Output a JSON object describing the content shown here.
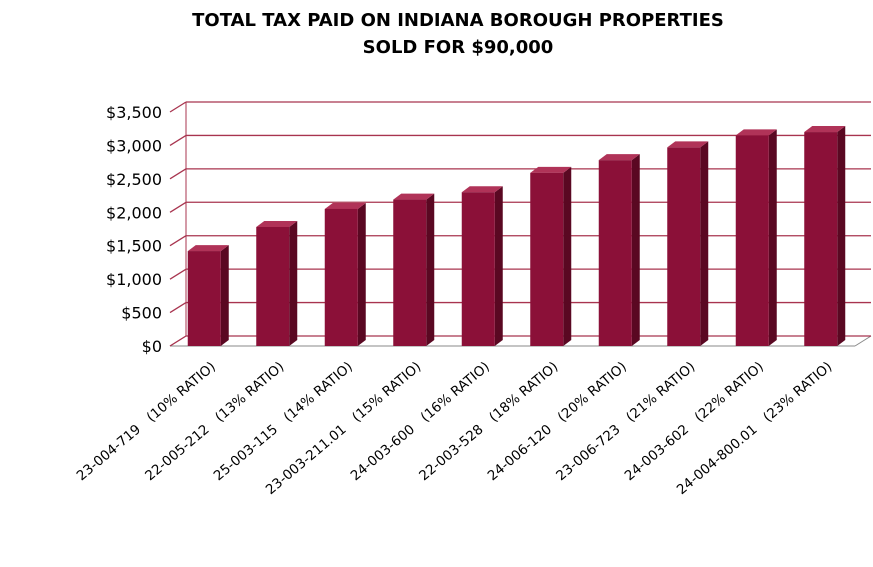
{
  "chart_data": {
    "type": "bar3d",
    "title": [
      "TOTAL TAX PAID ON INDIANA BOROUGH PROPERTIES",
      "SOLD FOR $90,000"
    ],
    "categories": [
      "23-004-719   (10% RATIO)",
      "22-005-212   (13% RATIO)",
      "25-003-115   (14% RATIO)",
      "23-003-211.01   (15% RATIO)",
      "24-003-600   (16% RATIO)",
      "22-003-528   (18% RATIO)",
      "24-006-120   (20% RATIO)",
      "23-006-723   (21% RATIO)",
      "24-003-602   (22% RATIO)",
      "24-004-800.01   (23% RATIO)"
    ],
    "values": [
      1420,
      1780,
      2050,
      2190,
      2300,
      2590,
      2780,
      2970,
      3150,
      3200
    ],
    "color": "#8b1038",
    "ylim": [
      0,
      3500
    ],
    "yticks": [
      {
        "value": 0,
        "label": "$0"
      },
      {
        "value": 500,
        "label": "$500"
      },
      {
        "value": 1000,
        "label": "$1,000"
      },
      {
        "value": 1500,
        "label": "$1,500"
      },
      {
        "value": 2000,
        "label": "$2,000"
      },
      {
        "value": 2500,
        "label": "$2,500"
      },
      {
        "value": 3000,
        "label": "$3,000"
      },
      {
        "value": 3500,
        "label": "$3,500"
      }
    ],
    "grid": true
  }
}
